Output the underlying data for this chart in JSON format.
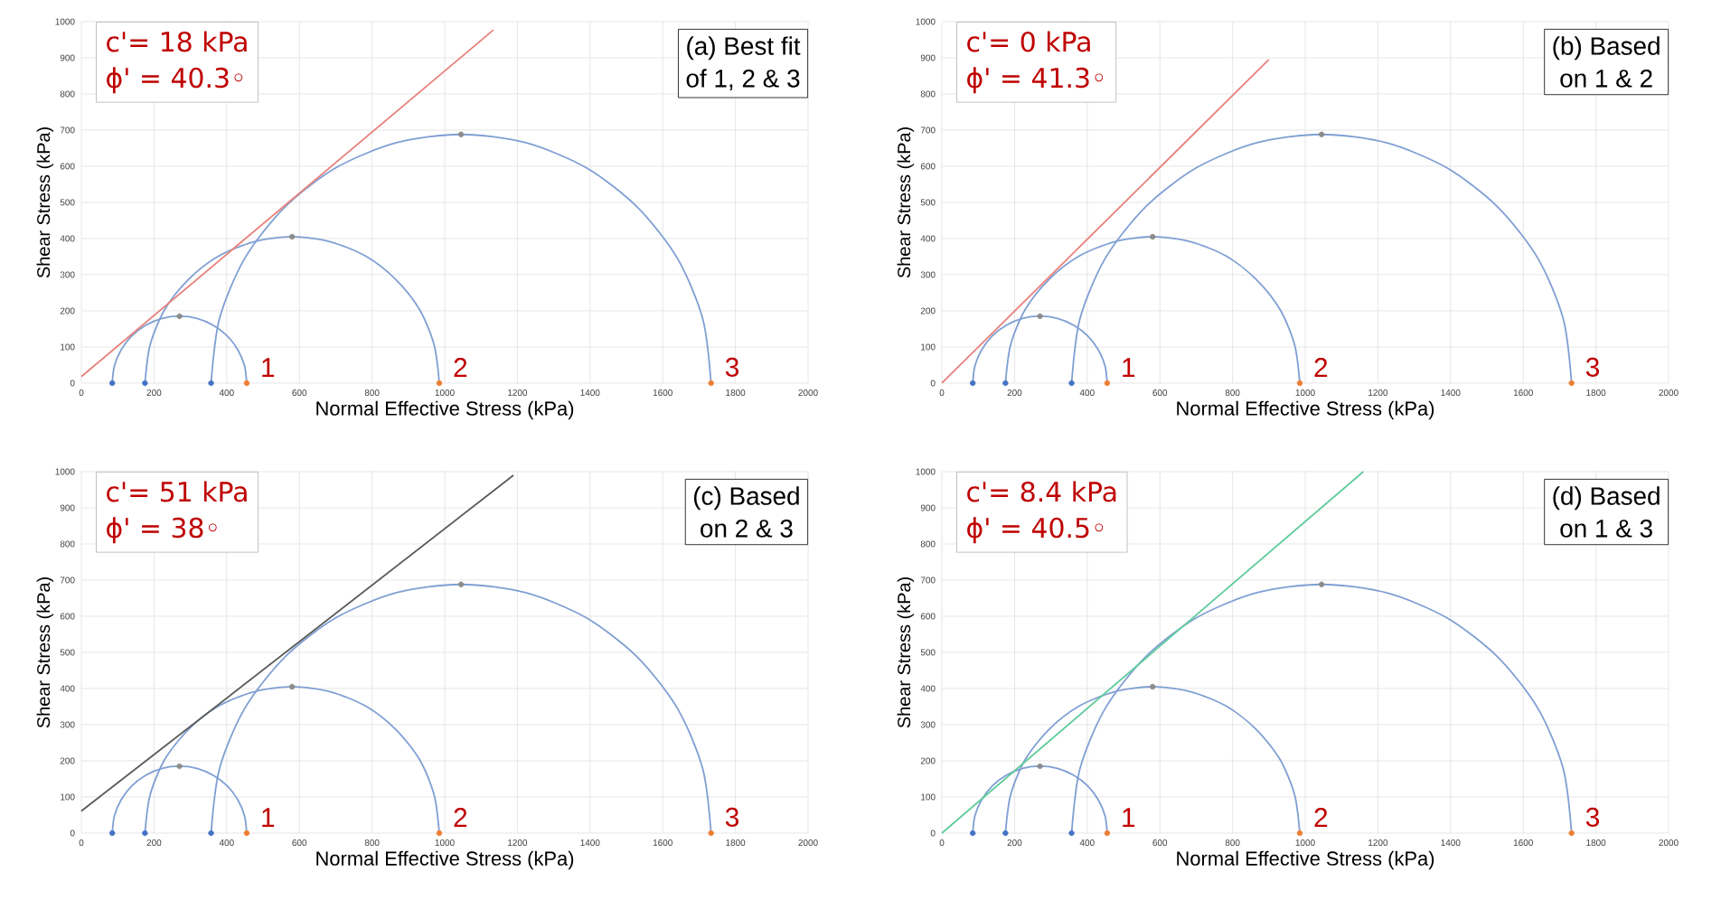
{
  "chart_data": [
    {
      "type": "line",
      "xlabel": "Normal Effective Stress (kPa)",
      "ylabel": "Shear Stress (kPa)",
      "xlim": [
        0,
        2000
      ],
      "ylim": [
        0,
        1000
      ],
      "xticks": [
        0,
        200,
        400,
        600,
        800,
        1000,
        1200,
        1400,
        1600,
        1800,
        2000
      ],
      "yticks": [
        0,
        100,
        200,
        300,
        400,
        500,
        600,
        700,
        800,
        900,
        1000
      ],
      "grid": true,
      "series": [
        {
          "color": "#7f9fd3",
          "x": [
            455,
            449,
            430,
            401,
            363,
            318,
            270,
            222,
            177,
            139,
            110,
            91,
            85
          ],
          "values": [
            0,
            48,
            93,
            131,
            160,
            179,
            185,
            179,
            160,
            131,
            93,
            48,
            0
          ]
        },
        {
          "color": "#7f9fd3",
          "x": [
            985,
            971,
            931,
            866,
            783,
            685,
            580,
            475,
            377,
            294,
            229,
            189,
            175
          ],
          "values": [
            0,
            105,
            203,
            286,
            351,
            391,
            405,
            391,
            351,
            286,
            203,
            105,
            0
          ]
        },
        {
          "color": "#7f9fd3",
          "x": [
            1733,
            1710,
            1641,
            1531,
            1389,
            1223,
            1045,
            867,
            701,
            559,
            449,
            380,
            357
          ],
          "values": [
            0,
            178,
            344,
            486,
            596,
            665,
            688,
            665,
            596,
            486,
            344,
            178,
            0
          ]
        },
        {
          "color": "#e8807a",
          "x": [
            0,
            1134
          ],
          "values": [
            18,
            977
          ]
        },
        {
          "type": "scatter",
          "marker": "circle",
          "x": [
            85,
            175,
            357,
            455,
            985,
            1733,
            270,
            580,
            1045
          ],
          "values": [
            0,
            0,
            0,
            0,
            0,
            0,
            185,
            405,
            688
          ],
          "colors": [
            "#4472c4",
            "#4472c4",
            "#4472c4",
            "#ed7d31",
            "#ed7d31",
            "#ed7d31",
            "#8c8c8c",
            "#8c8c8c",
            "#8c8c8c"
          ]
        }
      ],
      "annotations": [
        "c'= 18 kPa",
        "ϕ' = 40.3◦",
        "(a) Best fit",
        "of 1, 2 & 3",
        "1",
        "2",
        "3"
      ]
    },
    {
      "type": "line",
      "xlabel": "Normal Effective Stress (kPa)",
      "ylabel": "Shear Stress (kPa)",
      "xlim": [
        0,
        2000
      ],
      "ylim": [
        0,
        1000
      ],
      "xticks": [
        0,
        200,
        400,
        600,
        800,
        1000,
        1200,
        1400,
        1600,
        1800,
        2000
      ],
      "yticks": [
        0,
        100,
        200,
        300,
        400,
        500,
        600,
        700,
        800,
        900,
        1000
      ],
      "grid": true,
      "series": [
        {
          "color": "#7f9fd3",
          "x": [
            455,
            449,
            430,
            401,
            363,
            318,
            270,
            222,
            177,
            139,
            110,
            91,
            85
          ],
          "values": [
            0,
            48,
            93,
            131,
            160,
            179,
            185,
            179,
            160,
            131,
            93,
            48,
            0
          ]
        },
        {
          "color": "#7f9fd3",
          "x": [
            985,
            971,
            931,
            866,
            783,
            685,
            580,
            475,
            377,
            294,
            229,
            189,
            175
          ],
          "values": [
            0,
            105,
            203,
            286,
            351,
            391,
            405,
            391,
            351,
            286,
            203,
            105,
            0
          ]
        },
        {
          "color": "#7f9fd3",
          "x": [
            1733,
            1710,
            1641,
            1531,
            1389,
            1223,
            1045,
            867,
            701,
            559,
            449,
            380,
            357
          ],
          "values": [
            0,
            178,
            344,
            486,
            596,
            665,
            688,
            665,
            596,
            486,
            344,
            178,
            0
          ]
        },
        {
          "color": "#e8807a",
          "x": [
            0,
            900
          ],
          "values": [
            0,
            895
          ]
        },
        {
          "type": "scatter",
          "marker": "circle",
          "x": [
            85,
            175,
            357,
            455,
            985,
            1733,
            270,
            580,
            1045
          ],
          "values": [
            0,
            0,
            0,
            0,
            0,
            0,
            185,
            405,
            688
          ],
          "colors": [
            "#4472c4",
            "#4472c4",
            "#4472c4",
            "#ed7d31",
            "#ed7d31",
            "#ed7d31",
            "#8c8c8c",
            "#8c8c8c",
            "#8c8c8c"
          ]
        }
      ],
      "annotations": [
        "c'= 0 kPa",
        "ϕ' = 41.3◦",
        "(b) Based",
        "on  1 & 2",
        "1",
        "2",
        "3"
      ]
    },
    {
      "type": "line",
      "xlabel": "Normal Effective Stress (kPa)",
      "ylabel": "Shear Stress (kPa)",
      "xlim": [
        0,
        2000
      ],
      "ylim": [
        0,
        1000
      ],
      "xticks": [
        0,
        200,
        400,
        600,
        800,
        1000,
        1200,
        1400,
        1600,
        1800,
        2000
      ],
      "yticks": [
        0,
        100,
        200,
        300,
        400,
        500,
        600,
        700,
        800,
        900,
        1000
      ],
      "grid": true,
      "series": [
        {
          "color": "#7f9fd3",
          "x": [
            455,
            449,
            430,
            401,
            363,
            318,
            270,
            222,
            177,
            139,
            110,
            91,
            85
          ],
          "values": [
            0,
            48,
            93,
            131,
            160,
            179,
            185,
            179,
            160,
            131,
            93,
            48,
            0
          ]
        },
        {
          "color": "#7f9fd3",
          "x": [
            985,
            971,
            931,
            866,
            783,
            685,
            580,
            475,
            377,
            294,
            229,
            189,
            175
          ],
          "values": [
            0,
            105,
            203,
            286,
            351,
            391,
            405,
            391,
            351,
            286,
            203,
            105,
            0
          ]
        },
        {
          "color": "#7f9fd3",
          "x": [
            1733,
            1710,
            1641,
            1531,
            1389,
            1223,
            1045,
            867,
            701,
            559,
            449,
            380,
            357
          ],
          "values": [
            0,
            178,
            344,
            486,
            596,
            665,
            688,
            665,
            596,
            486,
            344,
            178,
            0
          ]
        },
        {
          "color": "#595959",
          "x": [
            0,
            1189
          ],
          "values": [
            61,
            990
          ]
        },
        {
          "type": "scatter",
          "marker": "circle",
          "x": [
            85,
            175,
            357,
            455,
            985,
            1733,
            270,
            580,
            1045
          ],
          "values": [
            0,
            0,
            0,
            0,
            0,
            0,
            185,
            405,
            688
          ],
          "colors": [
            "#4472c4",
            "#4472c4",
            "#4472c4",
            "#ed7d31",
            "#ed7d31",
            "#ed7d31",
            "#8c8c8c",
            "#8c8c8c",
            "#8c8c8c"
          ]
        }
      ],
      "annotations": [
        "c'= 51 kPa",
        "ϕ' = 38◦",
        "(c) Based",
        "on  2 & 3",
        "1",
        "2",
        "3"
      ]
    },
    {
      "type": "line",
      "xlabel": "Normal Effective Stress (kPa)",
      "ylabel": "Shear Stress (kPa)",
      "xlim": [
        0,
        2000
      ],
      "ylim": [
        0,
        1000
      ],
      "xticks": [
        0,
        200,
        400,
        600,
        800,
        1000,
        1200,
        1400,
        1600,
        1800,
        2000
      ],
      "yticks": [
        0,
        100,
        200,
        300,
        400,
        500,
        600,
        700,
        800,
        900,
        1000
      ],
      "grid": true,
      "series": [
        {
          "color": "#7f9fd3",
          "x": [
            455,
            449,
            430,
            401,
            363,
            318,
            270,
            222,
            177,
            139,
            110,
            91,
            85
          ],
          "values": [
            0,
            48,
            93,
            131,
            160,
            179,
            185,
            179,
            160,
            131,
            93,
            48,
            0
          ]
        },
        {
          "color": "#7f9fd3",
          "x": [
            985,
            971,
            931,
            866,
            783,
            685,
            580,
            475,
            377,
            294,
            229,
            189,
            175
          ],
          "values": [
            0,
            105,
            203,
            286,
            351,
            391,
            405,
            391,
            351,
            286,
            203,
            105,
            0
          ]
        },
        {
          "color": "#7f9fd3",
          "x": [
            1733,
            1710,
            1641,
            1531,
            1389,
            1223,
            1045,
            867,
            701,
            559,
            449,
            380,
            357
          ],
          "values": [
            0,
            178,
            344,
            486,
            596,
            665,
            688,
            665,
            596,
            486,
            344,
            178,
            0
          ]
        },
        {
          "color": "#5ecc9a",
          "x": [
            0,
            1160
          ],
          "values": [
            0,
            1000
          ]
        },
        {
          "type": "scatter",
          "marker": "circle",
          "x": [
            85,
            175,
            357,
            455,
            985,
            1733,
            270,
            580,
            1045
          ],
          "values": [
            0,
            0,
            0,
            0,
            0,
            0,
            185,
            405,
            688
          ],
          "colors": [
            "#4472c4",
            "#4472c4",
            "#4472c4",
            "#ed7d31",
            "#ed7d31",
            "#ed7d31",
            "#8c8c8c",
            "#8c8c8c",
            "#8c8c8c"
          ]
        }
      ],
      "annotations": [
        "c'= 8.4 kPa",
        "ϕ' = 40.5◦",
        "(d) Based",
        "on  1 & 3",
        "1",
        "2",
        "3"
      ]
    }
  ]
}
